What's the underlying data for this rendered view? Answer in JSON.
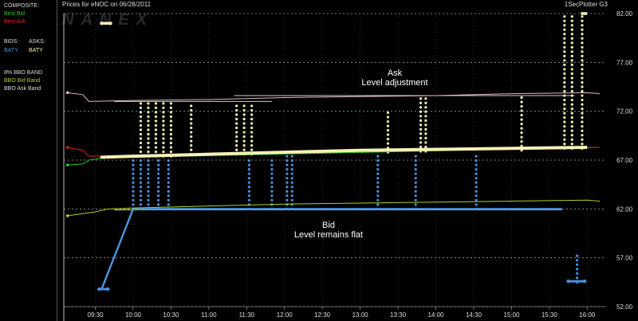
{
  "header": {
    "left_title": "Prices for  eNOC  on  06/28/2011",
    "right_title": "1SecPlotter G3",
    "watermark": "NANEX"
  },
  "sidebar": {
    "composite_label": "COMPOSITE:",
    "best_bid_label": "Best Bid",
    "best_ask_label": "Best Ask",
    "bids_label": "BIDS:",
    "asks_label": "ASKS:",
    "bid_exchange": "BATY",
    "ask_exchange": "BATY",
    "band_title": "8% BBO BAND",
    "band_bid_label": "BBO Bid Band",
    "band_ask_label": "BBO Ask Band"
  },
  "colors": {
    "best_bid": "#22cc22",
    "best_ask": "#dd2222",
    "baty_bid": "#4f8fd6",
    "baty_ask": "#f5f0b5",
    "band_bid": "#a8d428",
    "band_ask": "#e0b8c0",
    "grid": "#9a9a9a"
  },
  "annotations": {
    "ask_line1": "Ask",
    "ask_line2": "Level adjustment",
    "bid_line1": "Bid",
    "bid_line2": "Level remains flat"
  },
  "chart_data": {
    "type": "line",
    "title": "Prices for  eNOC  on  06/28/2011",
    "xlabel": "",
    "ylabel": "",
    "x_tick_labels": [
      "09:30",
      "10:00",
      "10:30",
      "11:00",
      "11:30",
      "12:00",
      "12:30",
      "13:00",
      "13:30",
      "14:00",
      "14:30",
      "15:00",
      "15:30",
      "16:00"
    ],
    "y_tick_labels": [
      "82.00",
      "77.00",
      "72.00",
      "67.00",
      "62.00",
      "57.00",
      "52.00"
    ],
    "ylim": [
      52,
      82
    ],
    "xlim_minutes": [
      545,
      975
    ],
    "grid": true,
    "legend": "left-panel",
    "series": [
      {
        "name": "Best Bid",
        "color_key": "best_bid",
        "x": [
          "09:08",
          "09:20",
          "09:25",
          "09:35",
          "10:00",
          "16:10"
        ],
        "y": [
          66.5,
          66.6,
          67.0,
          67.2,
          67.3,
          68.3
        ]
      },
      {
        "name": "Best Ask",
        "color_key": "best_ask",
        "x": [
          "09:08",
          "09:20",
          "09:25",
          "16:10"
        ],
        "y": [
          68.3,
          68.0,
          67.4,
          68.3
        ]
      },
      {
        "name": "BATY",
        "role": "bid",
        "color_key": "baty_bid",
        "x": [
          "09:35",
          "10:00",
          "11:00",
          "12:00",
          "13:00",
          "14:00",
          "15:00",
          "15:40"
        ],
        "y": [
          53.8,
          62.0,
          62.0,
          62.0,
          62.0,
          62.0,
          62.0,
          62.0
        ]
      },
      {
        "name": "BATY",
        "role": "ask",
        "color_key": "baty_ask",
        "x": [
          "09:35",
          "10:00",
          "11:00",
          "12:00",
          "13:00",
          "14:00",
          "15:00",
          "16:00"
        ],
        "y": [
          67.3,
          67.4,
          67.6,
          67.8,
          68.0,
          68.1,
          68.2,
          68.3
        ]
      },
      {
        "name": "BBO Bid Band",
        "color_key": "band_bid",
        "x": [
          "09:08",
          "09:30",
          "09:40",
          "10:00",
          "11:00",
          "12:00",
          "13:00",
          "14:00",
          "15:00",
          "16:00",
          "16:10"
        ],
        "y": [
          61.3,
          61.7,
          62.0,
          62.1,
          62.3,
          62.5,
          62.6,
          62.7,
          62.8,
          62.9,
          62.8
        ]
      },
      {
        "name": "BBO Ask Band",
        "color_key": "band_ask",
        "x": [
          "09:08",
          "09:20",
          "09:25",
          "10:00",
          "11:00",
          "12:00",
          "13:00",
          "14:00",
          "15:00",
          "16:00",
          "16:10"
        ],
        "y": [
          73.9,
          73.7,
          73.0,
          73.1,
          73.2,
          73.4,
          73.5,
          73.6,
          73.8,
          73.9,
          73.8
        ]
      }
    ],
    "ask_level_segments": [
      {
        "x_start": "09:45",
        "x_end": "11:50",
        "y": 73.0
      },
      {
        "x_start": "11:20",
        "x_end": "15:50",
        "y": 73.6
      }
    ],
    "bid_level_segments": [
      {
        "x_start": "09:45",
        "x_end": "15:40",
        "y": 61.9
      }
    ],
    "ask_bursts": [
      {
        "x": "10:06",
        "y_low": 67.4,
        "y_high": 73.0
      },
      {
        "x": "10:12",
        "y_low": 67.4,
        "y_high": 73.0
      },
      {
        "x": "10:18",
        "y_low": 67.4,
        "y_high": 73.0
      },
      {
        "x": "10:24",
        "y_low": 67.4,
        "y_high": 73.0
      },
      {
        "x": "10:30",
        "y_low": 67.4,
        "y_high": 73.0
      },
      {
        "x": "10:46",
        "y_low": 67.6,
        "y_high": 73.0
      },
      {
        "x": "11:22",
        "y_low": 67.6,
        "y_high": 73.0
      },
      {
        "x": "11:28",
        "y_low": 67.6,
        "y_high": 73.0
      },
      {
        "x": "11:34",
        "y_low": 67.6,
        "y_high": 73.0
      },
      {
        "x": "13:22",
        "y_low": 67.8,
        "y_high": 72.0
      },
      {
        "x": "13:48",
        "y_low": 67.9,
        "y_high": 73.6
      },
      {
        "x": "13:52",
        "y_low": 67.9,
        "y_high": 73.6
      },
      {
        "x": "15:08",
        "y_low": 68.0,
        "y_high": 73.8
      },
      {
        "x": "15:42",
        "y_low": 68.2,
        "y_high": 82.0
      },
      {
        "x": "15:48",
        "y_low": 68.2,
        "y_high": 82.0
      },
      {
        "x": "15:56",
        "y_low": 68.2,
        "y_high": 82.0
      }
    ],
    "bid_bursts": [
      {
        "x": "10:00",
        "y_low": 62.0,
        "y_high": 67.3
      },
      {
        "x": "10:06",
        "y_low": 62.0,
        "y_high": 67.3
      },
      {
        "x": "10:12",
        "y_low": 62.0,
        "y_high": 67.3
      },
      {
        "x": "10:20",
        "y_low": 62.0,
        "y_high": 67.3
      },
      {
        "x": "10:28",
        "y_low": 62.0,
        "y_high": 67.3
      },
      {
        "x": "11:32",
        "y_low": 62.0,
        "y_high": 67.4
      },
      {
        "x": "11:50",
        "y_low": 62.0,
        "y_high": 67.4
      },
      {
        "x": "12:02",
        "y_low": 62.0,
        "y_high": 67.5
      },
      {
        "x": "12:06",
        "y_low": 62.0,
        "y_high": 67.5
      },
      {
        "x": "13:14",
        "y_low": 62.0,
        "y_high": 67.6
      },
      {
        "x": "13:44",
        "y_low": 62.0,
        "y_high": 67.7
      },
      {
        "x": "14:32",
        "y_low": 62.0,
        "y_high": 67.8
      },
      {
        "x": "15:52",
        "y_low": 54.5,
        "y_high": 57.5
      }
    ],
    "isolated_marks": [
      {
        "series": "ask",
        "x": "09:35",
        "y": 81.0
      },
      {
        "series": "ask",
        "x": "09:42",
        "y": 81.0
      },
      {
        "series": "bid",
        "x": "09:33",
        "y": 53.8
      },
      {
        "series": "bid",
        "x": "09:40",
        "y": 53.8
      },
      {
        "series": "bid",
        "x": "15:45",
        "y": 54.6
      },
      {
        "series": "bid",
        "x": "15:58",
        "y": 54.6
      }
    ]
  }
}
